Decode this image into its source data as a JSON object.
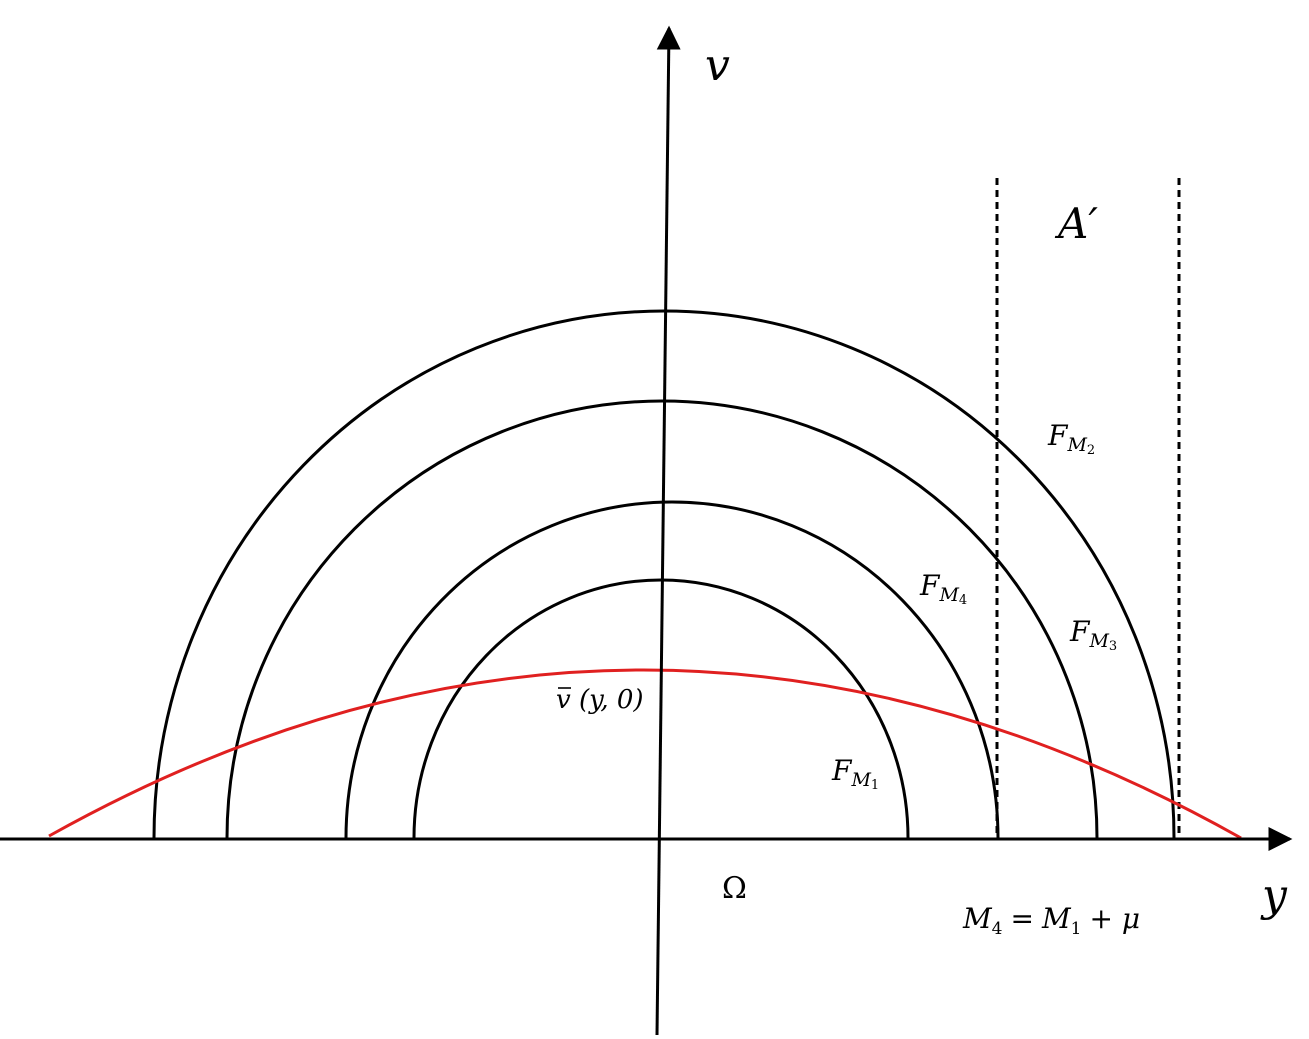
{
  "axes": {
    "v_label": "v",
    "y_label": "y",
    "origin_label": "Ω"
  },
  "region": {
    "label": "A′"
  },
  "curves": {
    "f_m1": {
      "base": "F",
      "sub": "M",
      "idx": "1"
    },
    "f_m2": {
      "base": "F",
      "sub": "M",
      "idx": "2"
    },
    "f_m3": {
      "base": "F",
      "sub": "M",
      "idx": "3"
    },
    "f_m4": {
      "base": "F",
      "sub": "M",
      "idx": "4"
    }
  },
  "red_curve": {
    "label": "v (y, 0)",
    "color": "#e02020"
  },
  "equation": {
    "lhs_base": "M",
    "lhs_idx": "4",
    "eq": "=",
    "rhs_base": "M",
    "rhs_idx": "1",
    "rhs_tail": "+ μ"
  }
}
